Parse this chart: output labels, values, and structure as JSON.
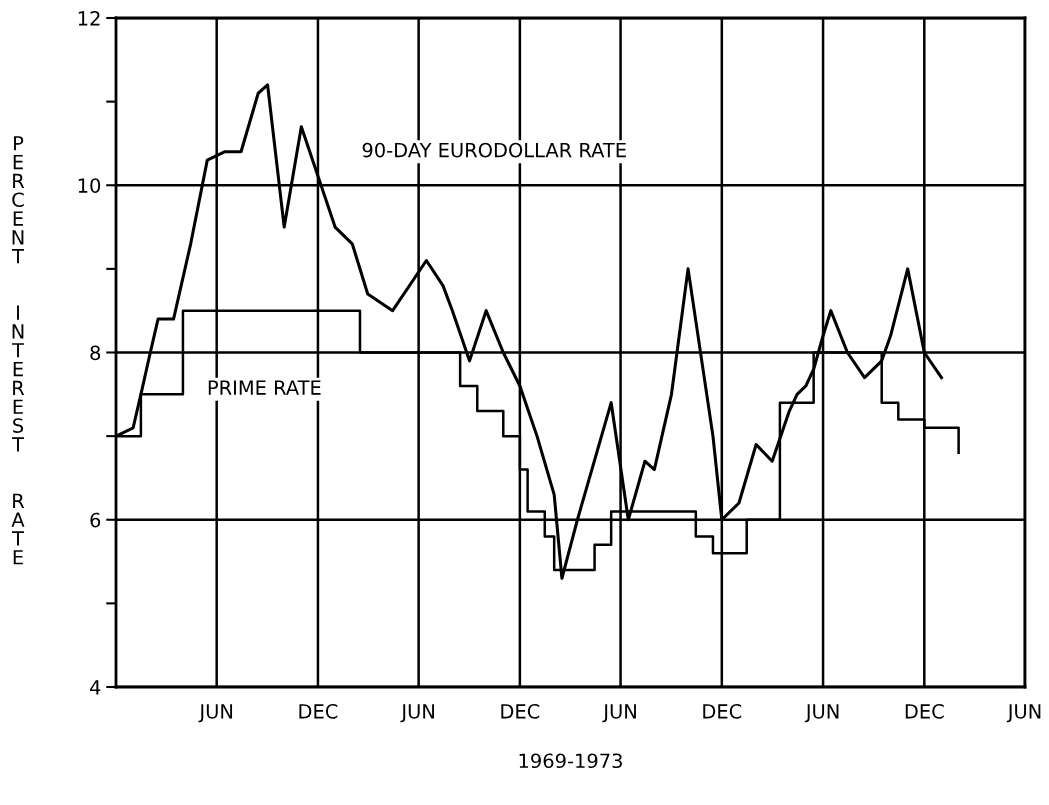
{
  "chart_data": {
    "type": "line",
    "xlabel": "1969-1973",
    "ylabel": "PERCENT  INTEREST  RATE",
    "xlim": [
      "1968-12-01",
      "1973-06-01"
    ],
    "xticks": [
      {
        "value": "1969-06-01",
        "label": "JUN"
      },
      {
        "value": "1969-12-01",
        "label": "DEC"
      },
      {
        "value": "1970-06-01",
        "label": "JUN"
      },
      {
        "value": "1970-12-01",
        "label": "DEC"
      },
      {
        "value": "1971-06-01",
        "label": "JUN"
      },
      {
        "value": "1971-12-01",
        "label": "DEC"
      },
      {
        "value": "1972-06-01",
        "label": "JUN"
      },
      {
        "value": "1972-12-01",
        "label": "DEC"
      },
      {
        "value": "1973-06-01",
        "label": "JUN"
      }
    ],
    "ylim": [
      4,
      12
    ],
    "yticks": [
      4,
      {
        "value": 5,
        "label": null
      },
      6,
      {
        "value": 7,
        "label": null
      },
      8,
      {
        "value": 9,
        "label": null
      },
      10,
      {
        "value": 11,
        "label": null
      },
      12
    ],
    "grid": true,
    "marker": "none",
    "line_style": "solid",
    "series": [
      {
        "name": "90-DAY EURODOLLAR RATE",
        "color": "#000000",
        "x": [
          "1968-12-01",
          "1969-01-01",
          "1969-01-15",
          "1969-02-01",
          "1969-02-15",
          "1969-03-15",
          "1969-04-15",
          "1969-05-15",
          "1969-06-15",
          "1969-07-15",
          "1969-08-15",
          "1969-09-01",
          "1969-10-01",
          "1969-11-01",
          "1970-01-01",
          "1970-02-01",
          "1970-03-01",
          "1970-04-15",
          "1970-06-15",
          "1970-07-15",
          "1970-08-01",
          "1970-09-01",
          "1970-10-01",
          "1970-11-01",
          "1970-12-01",
          "1971-01-01",
          "1971-02-01",
          "1971-02-15",
          "1971-03-15",
          "1971-05-15",
          "1971-06-15",
          "1971-07-15",
          "1971-08-01",
          "1971-09-01",
          "1971-10-01",
          "1971-11-15",
          "1971-12-01",
          "1972-01-01",
          "1972-02-01",
          "1972-03-01",
          "1972-04-01",
          "1972-04-15",
          "1972-05-01",
          "1972-05-15",
          "1972-06-01",
          "1972-06-15",
          "1972-07-15",
          "1972-08-15",
          "1972-09-15",
          "1972-10-01",
          "1972-11-01",
          "1972-12-01",
          "1973-01-01"
        ],
        "values": [
          7.0,
          7.1,
          7.5,
          8.0,
          8.4,
          8.4,
          9.3,
          10.3,
          10.4,
          10.4,
          11.1,
          11.2,
          9.5,
          10.7,
          9.5,
          9.3,
          8.7,
          8.5,
          9.1,
          8.8,
          8.5,
          7.9,
          8.5,
          8.0,
          7.6,
          7.0,
          6.3,
          5.3,
          6.0,
          7.4,
          6.0,
          6.7,
          6.6,
          7.5,
          9.0,
          7.0,
          6.0,
          6.2,
          6.9,
          6.7,
          7.3,
          7.5,
          7.6,
          7.8,
          8.2,
          8.5,
          8.0,
          7.7,
          7.9,
          8.2,
          9.0,
          8.0,
          7.7
        ]
      },
      {
        "name": "PRIME RATE",
        "color": "#000000",
        "type": "step",
        "x": [
          "1968-12-01",
          "1969-01-15",
          "1969-04-01",
          "1970-02-15",
          "1970-08-15",
          "1970-09-15",
          "1970-11-01",
          "1970-12-01",
          "1970-12-15",
          "1971-01-15",
          "1971-02-01",
          "1971-04-15",
          "1971-05-15",
          "1971-10-15",
          "1971-11-15",
          "1972-01-15",
          "1972-03-15",
          "1972-05-15",
          "1972-09-15",
          "1972-10-15",
          "1972-12-01",
          "1973-02-01"
        ],
        "values": [
          7.0,
          7.5,
          8.5,
          8.0,
          7.6,
          7.3,
          7.0,
          6.6,
          6.1,
          5.8,
          5.4,
          5.7,
          6.1,
          5.8,
          5.6,
          6.0,
          7.4,
          8.0,
          7.4,
          7.2,
          7.1,
          6.8
        ]
      }
    ]
  }
}
